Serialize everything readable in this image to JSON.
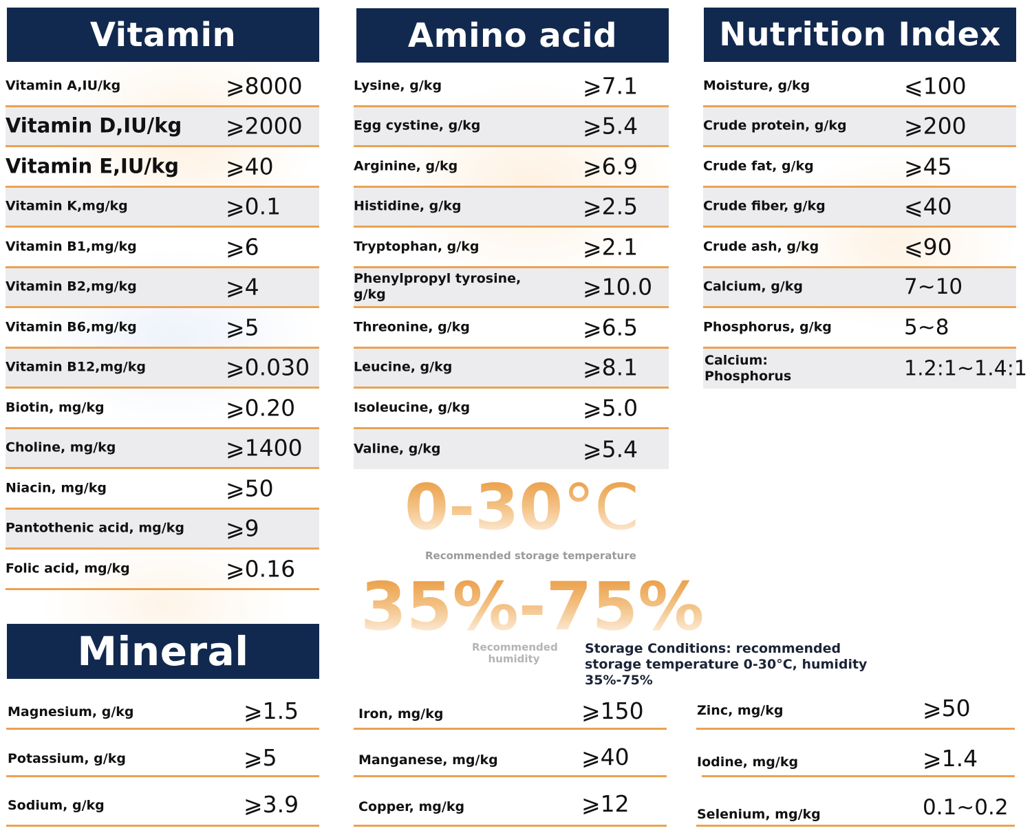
{
  "vitamin": {
    "title": "Vitamin",
    "rows": [
      {
        "label": "Vitamin A,IU/kg",
        "value": "⩾8000"
      },
      {
        "label": "Vitamin D,IU/kg",
        "value": "⩾2000"
      },
      {
        "label": "Vitamin E,IU/kg",
        "value": "⩾40"
      },
      {
        "label": "Vitamin K,mg/kg",
        "value": "⩾0.1"
      },
      {
        "label": "Vitamin B1,mg/kg",
        "value": "⩾6"
      },
      {
        "label": "Vitamin B2,mg/kg",
        "value": "⩾4"
      },
      {
        "label": "Vitamin B6,mg/kg",
        "value": "⩾5"
      },
      {
        "label": "Vitamin B12,mg/kg",
        "value": "⩾0.030"
      },
      {
        "label": "Biotin, mg/kg",
        "value": "⩾0.20"
      },
      {
        "label": "Choline, mg/kg",
        "value": "⩾1400"
      },
      {
        "label": "Niacin, mg/kg",
        "value": "⩾50"
      },
      {
        "label": "Pantothenic acid, mg/kg",
        "value": "⩾9"
      },
      {
        "label": "Folic acid, mg/kg",
        "value": "⩾0.16"
      }
    ]
  },
  "amino": {
    "title": "Amino acid",
    "rows": [
      {
        "label": "Lysine, g/kg",
        "value": "⩾7.1"
      },
      {
        "label": "Egg cystine, g/kg",
        "value": "⩾5.4"
      },
      {
        "label": "Arginine, g/kg",
        "value": "⩾6.9"
      },
      {
        "label": "Histidine, g/kg",
        "value": "⩾2.5"
      },
      {
        "label": "Tryptophan, g/kg",
        "value": "⩾2.1"
      },
      {
        "label": "Phenylpropyl tyrosine, g/kg",
        "value": "⩾10.0"
      },
      {
        "label": "Threonine, g/kg",
        "value": "⩾6.5"
      },
      {
        "label": "Leucine, g/kg",
        "value": "⩾8.1"
      },
      {
        "label": "Isoleucine, g/kg",
        "value": "⩾5.0"
      },
      {
        "label": "Valine, g/kg",
        "value": "⩾5.4"
      }
    ]
  },
  "nutrition": {
    "title": "Nutrition Index",
    "rows": [
      {
        "label": "Moisture, g/kg",
        "value": "⩽100"
      },
      {
        "label": "Crude protein, g/kg",
        "value": "⩾200"
      },
      {
        "label": "Crude fat, g/kg",
        "value": "⩾45"
      },
      {
        "label": "Crude fiber, g/kg",
        "value": "⩽40"
      },
      {
        "label": "Crude ash, g/kg",
        "value": "⩽90"
      },
      {
        "label": "Calcium, g/kg",
        "value": "7~10"
      },
      {
        "label": "Phosphorus, g/kg",
        "value": "5~8"
      },
      {
        "label": "Calcium: Phosphorus",
        "value": "1.2:1~1.4:1"
      }
    ]
  },
  "storage": {
    "temperature_value": "0-30",
    "temperature_unit": "°C",
    "temperature_caption": "Recommended storage temperature",
    "humidity_value": "35%-75%",
    "humidity_caption": "Recommended humidity",
    "conditions_text": "Storage Conditions: recommended storage temperature 0-30°C, humidity 35%-75%"
  },
  "mineral": {
    "title": "Mineral",
    "col1": [
      {
        "label": "Magnesium, g/kg",
        "value": "⩾1.5"
      },
      {
        "label": "Potassium, g/kg",
        "value": "⩾5"
      },
      {
        "label": "Sodium, g/kg",
        "value": "⩾3.9"
      }
    ],
    "col2": [
      {
        "label": "Iron, mg/kg",
        "value": "⩾150"
      },
      {
        "label": "Manganese, mg/kg",
        "value": "⩾40"
      },
      {
        "label": "Copper, mg/kg",
        "value": "⩾12"
      }
    ],
    "col3": [
      {
        "label": "Zinc, mg/kg",
        "value": "⩾50"
      },
      {
        "label": "Iodine, mg/kg",
        "value": "⩾1.4"
      },
      {
        "label": "Selenium, mg/kg",
        "value": "0.1~0.2"
      }
    ]
  }
}
